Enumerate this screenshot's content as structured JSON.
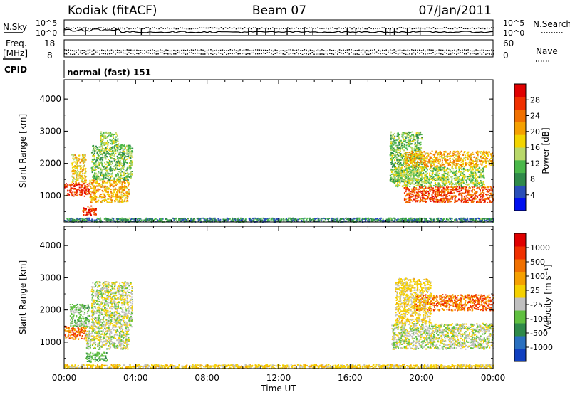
{
  "header": {
    "station": "Kodiak (fitACF)",
    "beam": "Beam 07",
    "date": "07/Jan/2011"
  },
  "top_panels": {
    "nsky_label": "N.Sky",
    "nsky_ticks": [
      "10^5",
      "10^0"
    ],
    "nsearch_label": "N.Search",
    "nsearch_ticks": [
      "10^5",
      "10^0"
    ],
    "freq_label_line1": "Freq.",
    "freq_label_line2": "[MHz]",
    "freq_ticks": [
      "18",
      "8"
    ],
    "nave_label": "Nave",
    "nave_ticks": [
      "60",
      "0"
    ],
    "cpid_label": "CPID",
    "cpid_text": "normal (fast) 151"
  },
  "power_colorbar": {
    "label": "Power [dB]",
    "ticks": [
      "28",
      "24",
      "20",
      "16",
      "12",
      "8",
      "4"
    ],
    "colors": [
      "#0010f0",
      "#2a4fb8",
      "#2f8a4a",
      "#4ab84a",
      "#b8d86a",
      "#f2d400",
      "#f5a000",
      "#f07000",
      "#f03000",
      "#e00000"
    ]
  },
  "velocity_colorbar": {
    "label": "Velocity [m s⁻¹]",
    "ticks": [
      "1000",
      "500",
      "100",
      "25",
      "-25",
      "-100",
      "-500",
      "-1000"
    ],
    "colors": [
      "#1040c0",
      "#2a70c0",
      "#2f8a4a",
      "#60c040",
      "#c0c0c0",
      "#f5d000",
      "#f5a000",
      "#f07000",
      "#f03000",
      "#e00000"
    ]
  },
  "chart_data": [
    {
      "type": "heatmap",
      "name": "power",
      "ylabel": "Slant Range [km]",
      "yticks": [
        "4000",
        "3000",
        "2000",
        "1000"
      ],
      "ylim": [
        180,
        4600
      ],
      "x": [
        "00:00",
        "04:00",
        "08:00",
        "12:00",
        "16:00",
        "20:00",
        "00:00"
      ],
      "zlabel": "Power [dB]",
      "zlim": [
        0,
        32
      ],
      "regions": [
        {
          "t0": 0.0,
          "t1": 1.4,
          "r0": 1000,
          "r1": 1400,
          "value": 28
        },
        {
          "t0": 0.4,
          "t1": 1.2,
          "r0": 1400,
          "r1": 2300,
          "value": 18
        },
        {
          "t0": 1.0,
          "t1": 1.8,
          "r0": 400,
          "r1": 700,
          "value": 28
        },
        {
          "t0": 1.4,
          "t1": 3.6,
          "r0": 800,
          "r1": 1500,
          "value": 20
        },
        {
          "t0": 1.5,
          "t1": 3.8,
          "r0": 1500,
          "r1": 2600,
          "value": 12
        },
        {
          "t0": 2.0,
          "t1": 3.0,
          "r0": 2600,
          "r1": 3000,
          "value": 14
        },
        {
          "t0": 18.2,
          "t1": 20.0,
          "r0": 1400,
          "r1": 3000,
          "value": 12
        },
        {
          "t0": 19.0,
          "t1": 24.0,
          "r0": 800,
          "r1": 1300,
          "value": 26
        },
        {
          "t0": 19.0,
          "t1": 24.0,
          "r0": 1900,
          "r1": 2400,
          "value": 20
        },
        {
          "t0": 18.5,
          "t1": 23.5,
          "r0": 1300,
          "r1": 1900,
          "value": 14
        },
        {
          "t0": 0.0,
          "t1": 24.0,
          "r0": 200,
          "r1": 320,
          "value": 8
        }
      ]
    },
    {
      "type": "heatmap",
      "name": "velocity",
      "ylabel": "Slant Range [km]",
      "yticks": [
        "4000",
        "3000",
        "2000",
        "1000"
      ],
      "ylim": [
        180,
        4600
      ],
      "x": [
        "00:00",
        "04:00",
        "08:00",
        "12:00",
        "16:00",
        "20:00",
        "00:00"
      ],
      "xlabel": "Time UT",
      "zlabel": "Velocity [m s⁻¹]",
      "zlim": [
        -1000,
        1000
      ],
      "regions": [
        {
          "t0": 0.0,
          "t1": 1.2,
          "r0": 1100,
          "r1": 1500,
          "value": -500
        },
        {
          "t0": 0.3,
          "t1": 1.4,
          "r0": 1500,
          "r1": 2200,
          "value": 50
        },
        {
          "t0": 1.2,
          "t1": 2.4,
          "r0": 400,
          "r1": 700,
          "value": 100
        },
        {
          "t0": 1.2,
          "t1": 3.6,
          "r0": 800,
          "r1": 1500,
          "value": 0
        },
        {
          "t0": 1.5,
          "t1": 3.8,
          "r0": 1500,
          "r1": 2900,
          "value": 0
        },
        {
          "t0": 18.3,
          "t1": 24.0,
          "r0": 800,
          "r1": 1600,
          "value": 0
        },
        {
          "t0": 19.5,
          "t1": 24.0,
          "r0": 2000,
          "r1": 2500,
          "value": -500
        },
        {
          "t0": 18.5,
          "t1": 20.5,
          "r0": 1600,
          "r1": 3000,
          "value": -50
        },
        {
          "t0": 0.0,
          "t1": 24.0,
          "r0": 200,
          "r1": 320,
          "value": -60
        }
      ]
    }
  ]
}
